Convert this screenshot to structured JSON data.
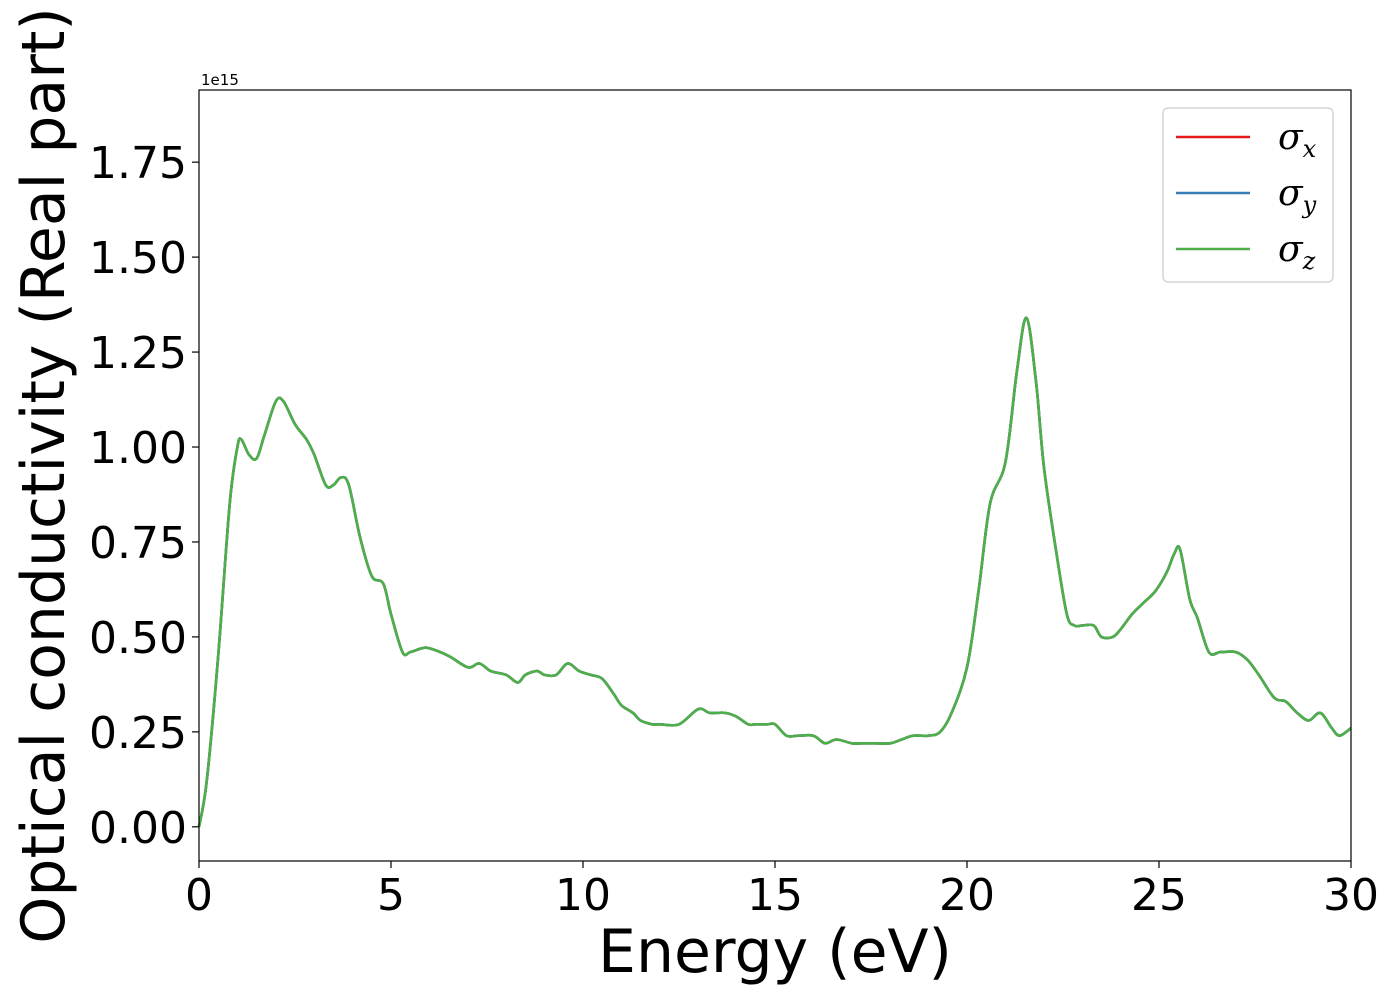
{
  "chart_data": {
    "type": "line",
    "xlabel": "Energy (eV)",
    "ylabel": "Optical conductivity (Real part)",
    "y_offset_label": "1e15",
    "xlim": [
      0,
      30
    ],
    "ylim": [
      -0.09,
      1.94
    ],
    "x_ticks": [
      0,
      5,
      10,
      15,
      20,
      25,
      30
    ],
    "x_tick_labels": [
      "0",
      "5",
      "10",
      "15",
      "20",
      "25",
      "30"
    ],
    "y_ticks": [
      0.0,
      0.25,
      0.5,
      0.75,
      1.0,
      1.25,
      1.5,
      1.75
    ],
    "y_tick_labels": [
      "0.00",
      "0.25",
      "0.50",
      "0.75",
      "1.00",
      "1.25",
      "1.50",
      "1.75"
    ],
    "grid": false,
    "legend_position": "top-right",
    "series": [
      {
        "name": "σ",
        "subscript": "x",
        "color": "#e41a1c"
      },
      {
        "name": "σ",
        "subscript": "y",
        "color": "#377eb8"
      },
      {
        "name": "σ",
        "subscript": "z",
        "color": "#4daf4a"
      }
    ],
    "x": [
      0.0,
      0.2,
      0.5,
      0.8,
      1.0,
      1.1,
      1.3,
      1.5,
      1.7,
      2.0,
      2.2,
      2.5,
      2.8,
      3.0,
      3.3,
      3.5,
      3.7,
      3.9,
      4.2,
      4.5,
      4.8,
      5.0,
      5.3,
      5.5,
      5.8,
      6.0,
      6.5,
      7.0,
      7.3,
      7.6,
      8.0,
      8.3,
      8.5,
      8.8,
      9.0,
      9.3,
      9.6,
      9.9,
      10.2,
      10.5,
      10.8,
      11.0,
      11.3,
      11.5,
      11.8,
      12.0,
      12.5,
      13.0,
      13.3,
      13.7,
      14.0,
      14.3,
      14.5,
      14.8,
      15.0,
      15.3,
      15.6,
      16.0,
      16.3,
      16.6,
      17.0,
      17.3,
      17.6,
      18.0,
      18.3,
      18.6,
      19.0,
      19.3,
      19.6,
      20.0,
      20.3,
      20.6,
      21.0,
      21.3,
      21.55,
      21.8,
      22.0,
      22.3,
      22.6,
      22.8,
      23.0,
      23.3,
      23.5,
      23.8,
      24.0,
      24.3,
      24.6,
      24.9,
      25.2,
      25.4,
      25.55,
      25.8,
      26.0,
      26.3,
      26.6,
      27.0,
      27.3,
      27.6,
      28.0,
      28.3,
      28.6,
      28.9,
      29.2,
      29.5,
      29.7,
      30.0
    ],
    "values": [
      0.0,
      0.12,
      0.45,
      0.85,
      1.0,
      1.02,
      0.98,
      0.97,
      1.03,
      1.12,
      1.12,
      1.06,
      1.02,
      0.98,
      0.9,
      0.9,
      0.92,
      0.9,
      0.76,
      0.66,
      0.64,
      0.56,
      0.46,
      0.46,
      0.47,
      0.47,
      0.45,
      0.42,
      0.43,
      0.41,
      0.4,
      0.38,
      0.4,
      0.41,
      0.4,
      0.4,
      0.43,
      0.41,
      0.4,
      0.39,
      0.35,
      0.32,
      0.3,
      0.28,
      0.27,
      0.27,
      0.27,
      0.31,
      0.3,
      0.3,
      0.29,
      0.27,
      0.27,
      0.27,
      0.27,
      0.24,
      0.24,
      0.24,
      0.22,
      0.23,
      0.22,
      0.22,
      0.22,
      0.22,
      0.23,
      0.24,
      0.24,
      0.25,
      0.3,
      0.42,
      0.62,
      0.85,
      0.96,
      1.2,
      1.34,
      1.17,
      0.95,
      0.74,
      0.56,
      0.53,
      0.53,
      0.53,
      0.5,
      0.5,
      0.52,
      0.56,
      0.59,
      0.62,
      0.67,
      0.72,
      0.73,
      0.6,
      0.55,
      0.46,
      0.46,
      0.46,
      0.44,
      0.4,
      0.34,
      0.33,
      0.3,
      0.28,
      0.3,
      0.26,
      0.24,
      0.26
    ]
  }
}
